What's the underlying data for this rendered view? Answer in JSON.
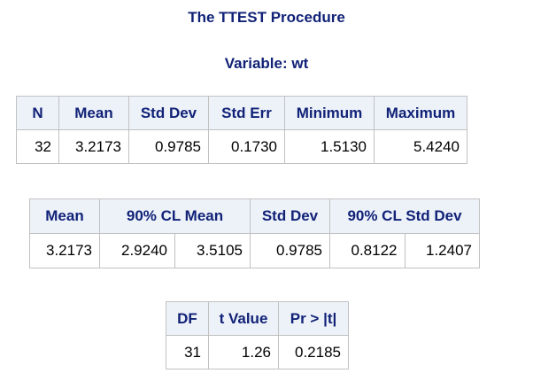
{
  "procedure_title": "The TTEST Procedure",
  "variable_title": "Variable: wt",
  "statistics_table": {
    "headers": [
      "N",
      "Mean",
      "Std Dev",
      "Std Err",
      "Minimum",
      "Maximum"
    ],
    "row": [
      "32",
      "3.2173",
      "0.9785",
      "0.1730",
      "1.5130",
      "5.4240"
    ]
  },
  "confidence_table": {
    "headers": [
      "Mean",
      "90% CL Mean",
      "Std Dev",
      "90% CL Std Dev"
    ],
    "row": [
      "3.2173",
      "2.9240",
      "3.5105",
      "0.9785",
      "0.8122",
      "1.2407"
    ]
  },
  "ttest_table": {
    "headers": [
      "DF",
      "t Value",
      "Pr > |t|"
    ],
    "row": [
      "31",
      "1.26",
      "0.2185"
    ]
  },
  "colors": {
    "header_text": "#112277",
    "header_background": "#edf2f9",
    "border": "#c1c1c1"
  }
}
